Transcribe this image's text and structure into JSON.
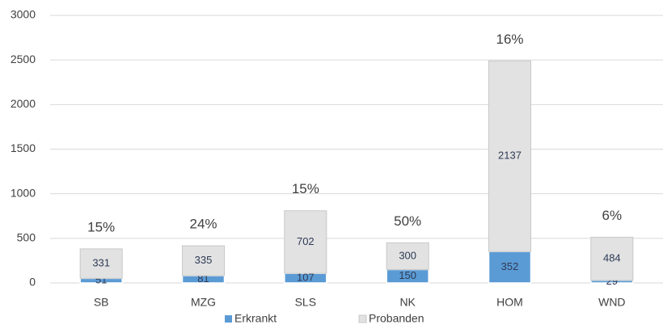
{
  "chart_data": {
    "type": "stacked_bar",
    "categories": [
      "SB",
      "MZG",
      "SLS",
      "NK",
      "HOM",
      "WND"
    ],
    "series": [
      {
        "name": "Erkrankt",
        "color": "#5b9bd5",
        "values": [
          51,
          81,
          107,
          150,
          352,
          29
        ]
      },
      {
        "name": "Probanden",
        "color": "#e2e2e2",
        "values": [
          331,
          335,
          702,
          300,
          2137,
          484
        ]
      }
    ],
    "annotations": [
      "15%",
      "24%",
      "15%",
      "50%",
      "16%",
      "6%"
    ],
    "ylim": [
      0,
      3000
    ],
    "yticks": [
      0,
      500,
      1000,
      1500,
      2000,
      2500,
      3000
    ],
    "grid": true,
    "legend": "bottom"
  }
}
